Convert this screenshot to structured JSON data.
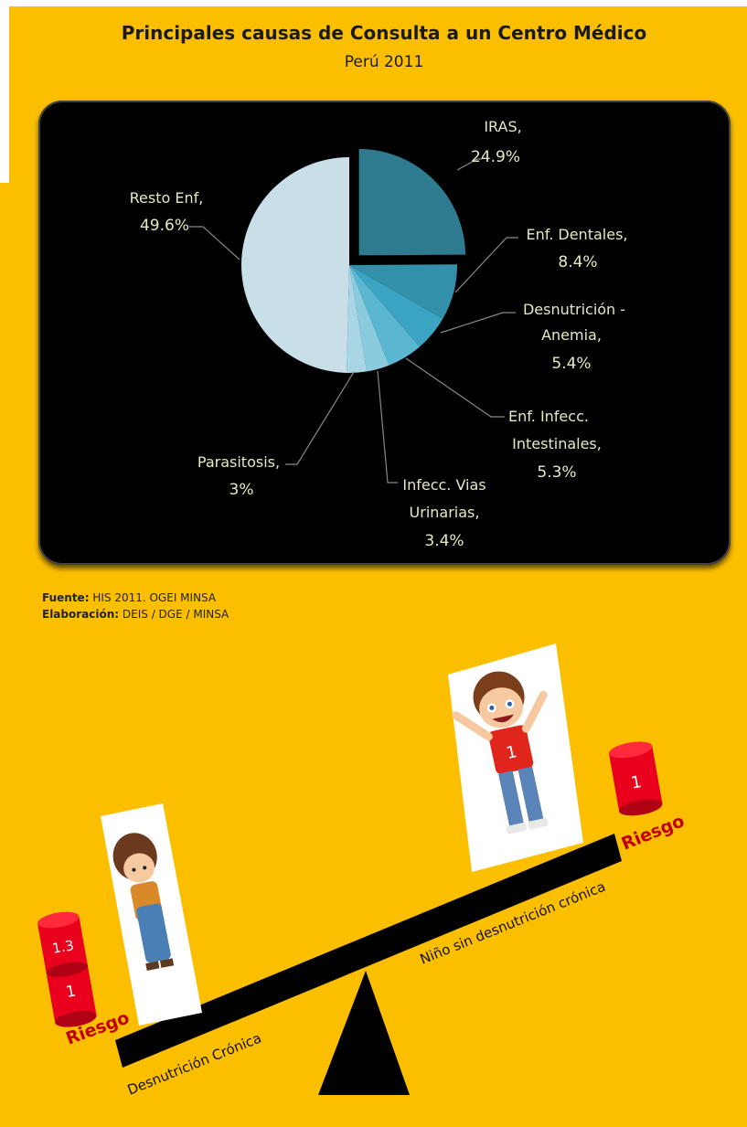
{
  "title": "Principales causas de Consulta a un Centro Médico",
  "subtitle": "Perú 2011",
  "chart_data": {
    "type": "pie",
    "slices": [
      {
        "name": "IRAS,",
        "value": 24.9,
        "label": "24.9%",
        "color": "#2E7A8F",
        "exploded": true
      },
      {
        "name": "Enf. Dentales,",
        "value": 8.4,
        "label": "8.4%",
        "color": "#3390AA"
      },
      {
        "name": "Desnutrición - Anemia,",
        "value": 5.4,
        "label": "5.4%",
        "color": "#3AA4C2"
      },
      {
        "name": "Enf. Infecc. Intestinales,",
        "value": 5.3,
        "label": "5.3%",
        "color": "#5BB7D1"
      },
      {
        "name": "Infecc. Vias Urinarias,",
        "value": 3.4,
        "label": "3.4%",
        "color": "#8ACBDE"
      },
      {
        "name": "Parasitosis,",
        "value": 3,
        "label": "3%",
        "color": "#A8D6E4"
      },
      {
        "name": "Resto Enf,",
        "value": 49.6,
        "label": "49.6%",
        "color": "#C8DFE8"
      }
    ]
  },
  "source": {
    "fuente_label": "Fuente:",
    "fuente_value": "HIS 2011. OGEI MINSA",
    "elaboracion_label": "Elaboración:",
    "elaboracion_value": "DEIS / DGE / MINSA"
  },
  "infographic": {
    "left_risk_label": "Riesgo",
    "right_risk_label": "Riesgo",
    "left_can_top": "1.3",
    "left_can_bottom": "1",
    "right_can": "1",
    "left_beam_label": "Desnutrición Crónica",
    "right_beam_label": "Niño sin desnutrición crónica",
    "right_shirt_number": "1",
    "colors": {
      "risk": "#C00000",
      "can": "#E8001C",
      "beam": "#000000"
    }
  }
}
